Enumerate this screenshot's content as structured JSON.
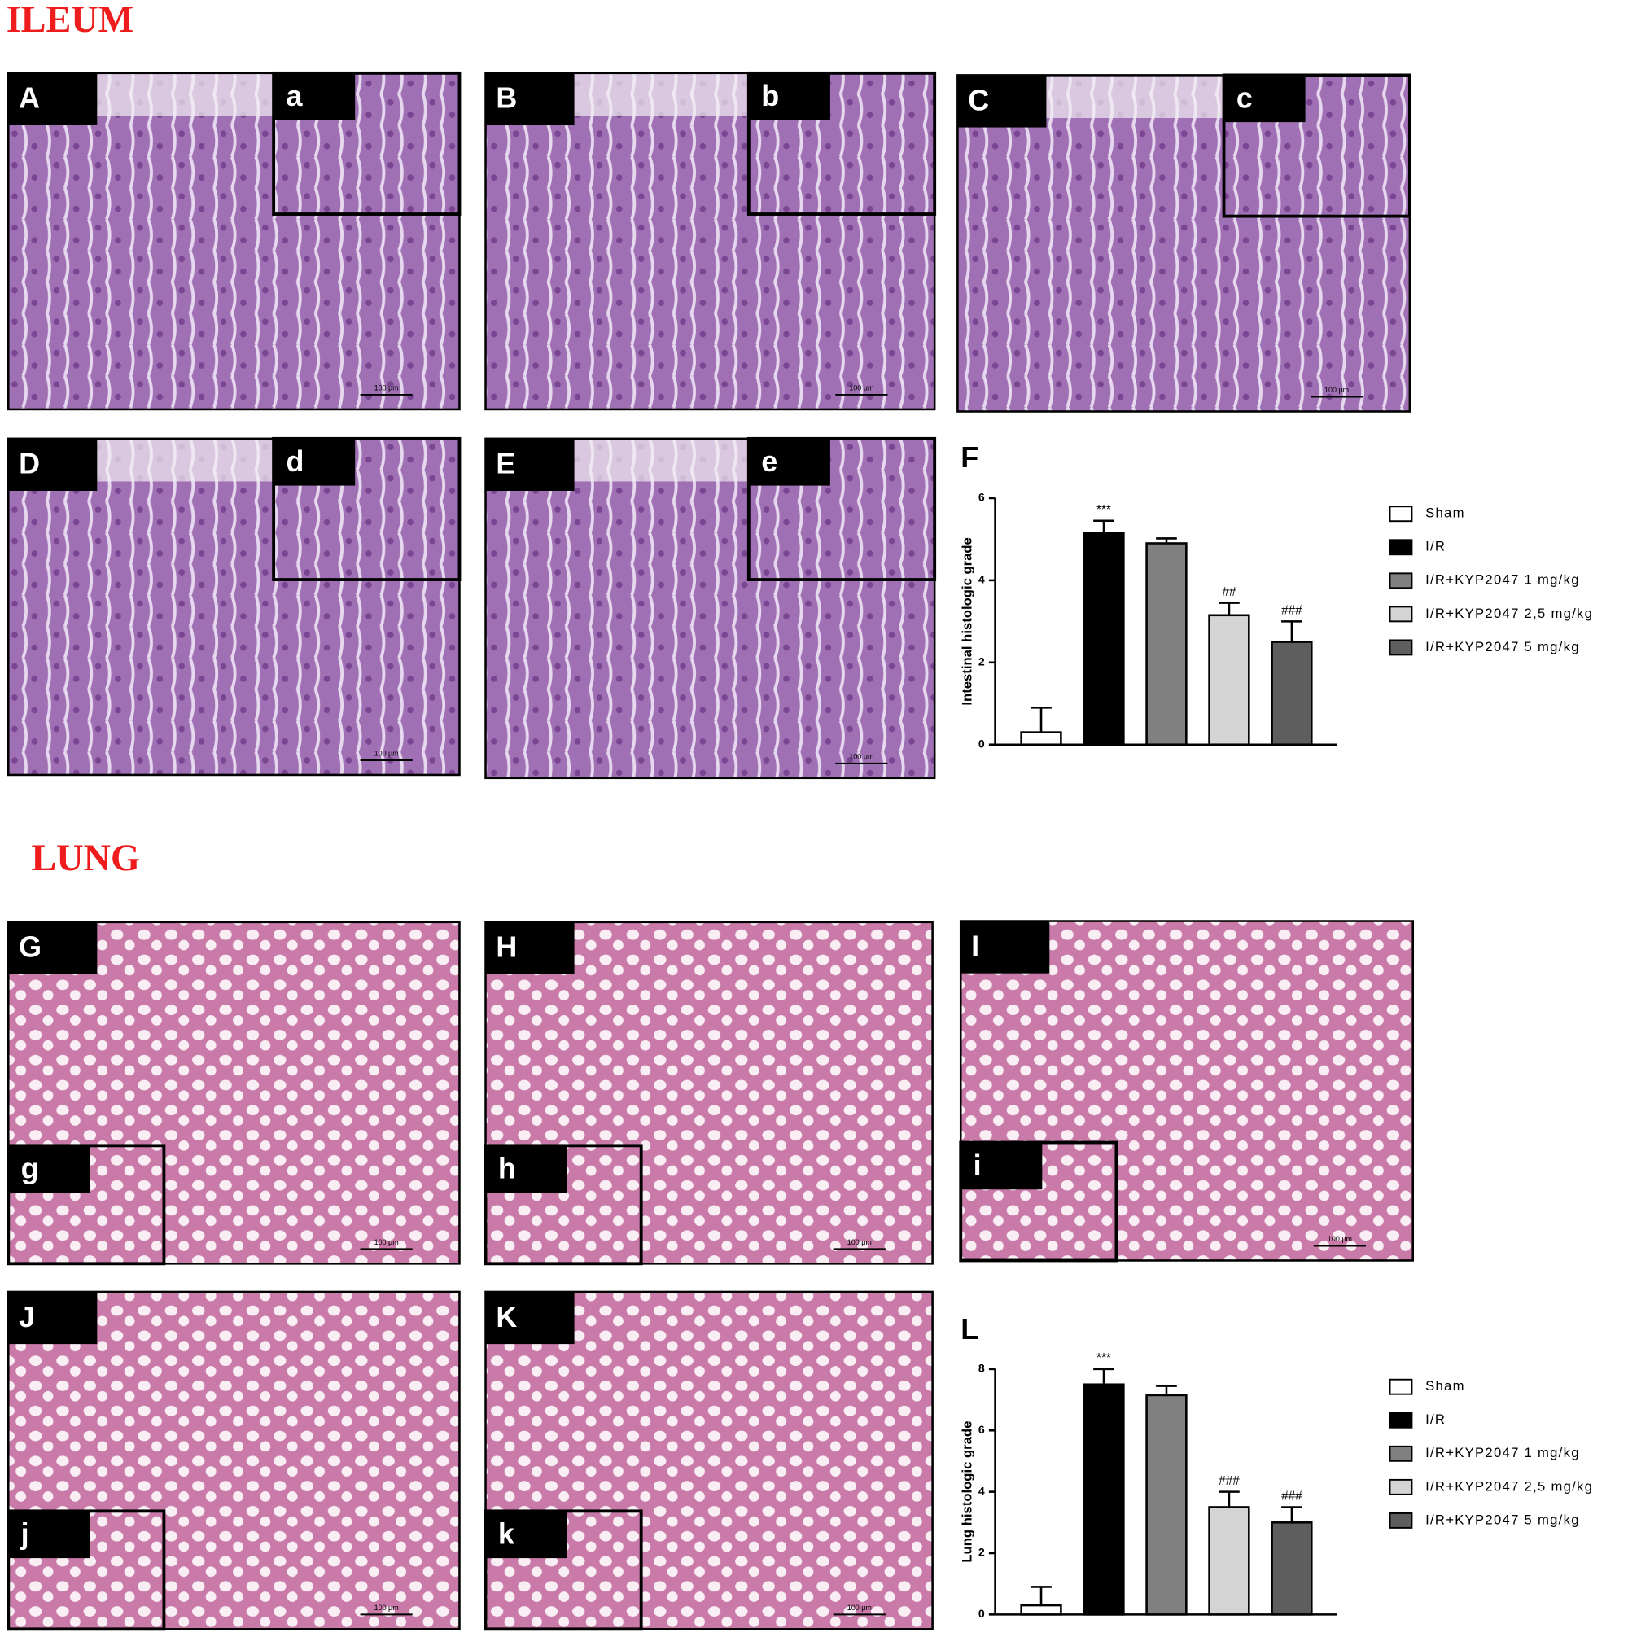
{
  "sections": [
    {
      "title": "ILEUM",
      "panels": [
        {
          "label": "A",
          "inset": "a",
          "scale": "100 μm"
        },
        {
          "label": "B",
          "inset": "b",
          "scale": "100 μm"
        },
        {
          "label": "C",
          "inset": "c",
          "scale": "100 μm"
        },
        {
          "label": "D",
          "inset": "d",
          "scale": "100 μm"
        },
        {
          "label": "E",
          "inset": "e",
          "scale": "100 μm"
        }
      ]
    },
    {
      "title": "LUNG",
      "panels": [
        {
          "label": "G",
          "inset": "g",
          "scale": "100 μm"
        },
        {
          "label": "H",
          "inset": "h",
          "scale": "100 μm"
        },
        {
          "label": "I",
          "inset": "i",
          "scale": "100 μm"
        },
        {
          "label": "J",
          "inset": "j",
          "scale": "100 μm"
        },
        {
          "label": "K",
          "inset": "k",
          "scale": "100 μm"
        }
      ]
    }
  ],
  "chart_data": [
    {
      "type": "bar",
      "panel_label": "F",
      "y_label": "Intestinal histologic grade",
      "categories": [
        "Sham",
        "I/R",
        "I/R+KYP2047 1 mg/kg",
        "I/R+KYP2047 2,5 mg/kg",
        "I/R+KYP2047 5 mg/kg"
      ],
      "values": [
        0.3,
        5.15,
        4.9,
        3.15,
        2.5
      ],
      "errors": [
        0.6,
        0.3,
        0.12,
        0.3,
        0.5
      ],
      "annotations": [
        null,
        "***",
        null,
        "##",
        "###"
      ],
      "colors": [
        "#ffffff",
        "#000000",
        "#808080",
        "#d4d4d4",
        "#5e5e5e"
      ],
      "ylim": [
        0,
        6
      ],
      "yticks": [
        0,
        2,
        4,
        6
      ]
    },
    {
      "type": "bar",
      "panel_label": "L",
      "y_label": "Lung histologic grade",
      "categories": [
        "Sham",
        "I/R",
        "I/R+KYP2047 1 mg/kg",
        "I/R+KYP2047 2,5 mg/kg",
        "I/R+KYP2047 5 mg/kg"
      ],
      "values": [
        0.3,
        7.5,
        7.15,
        3.5,
        3.0
      ],
      "errors": [
        0.6,
        0.5,
        0.3,
        0.5,
        0.5
      ],
      "annotations": [
        null,
        "***",
        null,
        "###",
        "###"
      ],
      "colors": [
        "#ffffff",
        "#000000",
        "#808080",
        "#d4d4d4",
        "#5e5e5e"
      ],
      "ylim": [
        0,
        8
      ],
      "yticks": [
        0,
        2,
        4,
        6,
        8
      ]
    }
  ]
}
